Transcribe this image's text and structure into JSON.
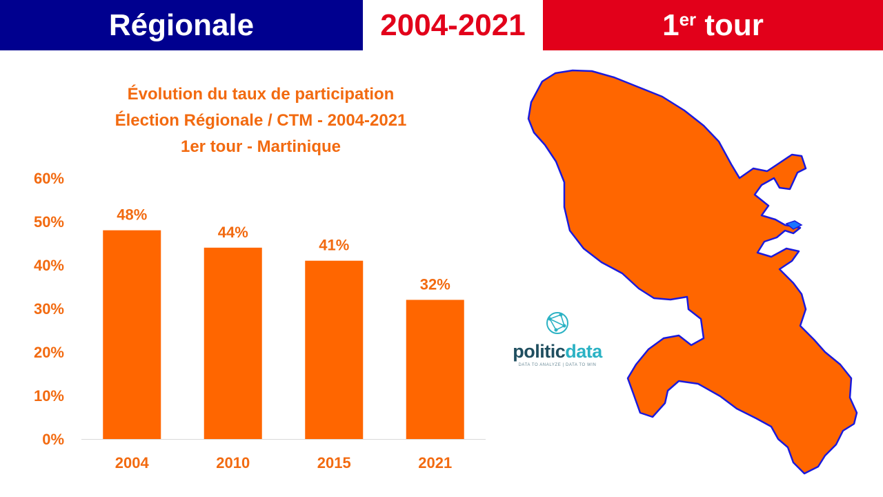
{
  "header": {
    "left": "Régionale",
    "middle": "2004-2021",
    "right_main": "1",
    "right_sup": "er",
    "right_rest": " tour"
  },
  "colors": {
    "blue": "#00008f",
    "red": "#e2001a",
    "orange": "#ff6600",
    "title_orange": "#f26a10",
    "map_outline": "#1a1adc"
  },
  "chart_data": {
    "type": "bar",
    "title_lines": [
      "Évolution du taux de participation",
      "Élection Régionale / CTM - 2004-2021",
      "1er tour - Martinique"
    ],
    "categories": [
      "2004",
      "2010",
      "2015",
      "2021"
    ],
    "values": [
      48,
      44,
      41,
      32
    ],
    "value_labels": [
      "48%",
      "44%",
      "41%",
      "32%"
    ],
    "y_ticks": [
      "0%",
      "10%",
      "20%",
      "30%",
      "40%",
      "50%",
      "60%"
    ],
    "ylim": [
      0,
      60
    ],
    "y_unit": "%",
    "grid": false,
    "legend": "none"
  },
  "logo": {
    "word_part1": "politic",
    "word_part2": "data",
    "tagline": "DATA TO ANALYZE | DATA TO WIN",
    "icon": "network-globe-icon"
  },
  "map": {
    "icon": "martinique-map"
  }
}
